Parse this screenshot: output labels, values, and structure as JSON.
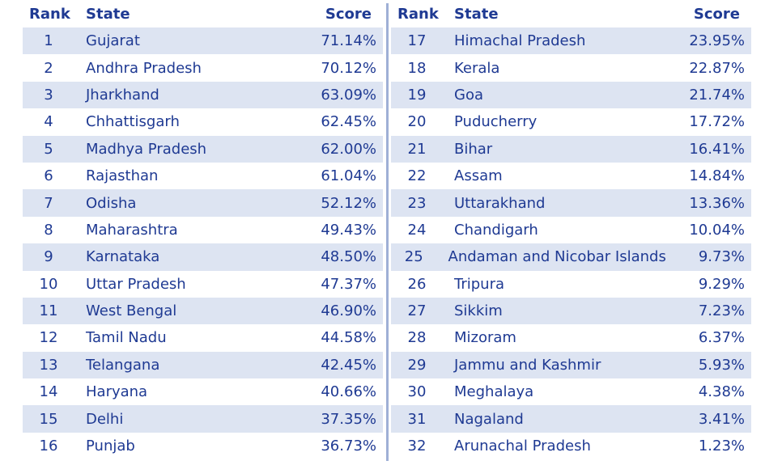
{
  "headers": {
    "rank": "Rank",
    "state": "State",
    "score": "Score"
  },
  "chart_data": {
    "type": "table",
    "columns": [
      "Rank",
      "State",
      "Score"
    ],
    "rows": [
      {
        "rank": "1",
        "state": "Gujarat",
        "score": "71.14%"
      },
      {
        "rank": "2",
        "state": "Andhra Pradesh",
        "score": "70.12%"
      },
      {
        "rank": "3",
        "state": "Jharkhand",
        "score": "63.09%"
      },
      {
        "rank": "4",
        "state": "Chhattisgarh",
        "score": "62.45%"
      },
      {
        "rank": "5",
        "state": "Madhya Pradesh",
        "score": "62.00%"
      },
      {
        "rank": "6",
        "state": "Rajasthan",
        "score": "61.04%"
      },
      {
        "rank": "7",
        "state": "Odisha",
        "score": "52.12%"
      },
      {
        "rank": "8",
        "state": "Maharashtra",
        "score": "49.43%"
      },
      {
        "rank": "9",
        "state": "Karnataka",
        "score": "48.50%"
      },
      {
        "rank": "10",
        "state": "Uttar Pradesh",
        "score": "47.37%"
      },
      {
        "rank": "11",
        "state": "West Bengal",
        "score": "46.90%"
      },
      {
        "rank": "12",
        "state": "Tamil Nadu",
        "score": "44.58%"
      },
      {
        "rank": "13",
        "state": "Telangana",
        "score": "42.45%"
      },
      {
        "rank": "14",
        "state": "Haryana",
        "score": "40.66%"
      },
      {
        "rank": "15",
        "state": "Delhi",
        "score": "37.35%"
      },
      {
        "rank": "16",
        "state": "Punjab",
        "score": "36.73%"
      },
      {
        "rank": "17",
        "state": "Himachal Pradesh",
        "score": "23.95%"
      },
      {
        "rank": "18",
        "state": "Kerala",
        "score": "22.87%"
      },
      {
        "rank": "19",
        "state": "Goa",
        "score": "21.74%"
      },
      {
        "rank": "20",
        "state": "Puducherry",
        "score": "17.72%"
      },
      {
        "rank": "21",
        "state": "Bihar",
        "score": "16.41%"
      },
      {
        "rank": "22",
        "state": "Assam",
        "score": "14.84%"
      },
      {
        "rank": "23",
        "state": "Uttarakhand",
        "score": "13.36%"
      },
      {
        "rank": "24",
        "state": "Chandigarh",
        "score": "10.04%"
      },
      {
        "rank": "25",
        "state": "Andaman and Nicobar Islands",
        "score": "9.73%"
      },
      {
        "rank": "26",
        "state": "Tripura",
        "score": "9.29%"
      },
      {
        "rank": "27",
        "state": "Sikkim",
        "score": "7.23%"
      },
      {
        "rank": "28",
        "state": "Mizoram",
        "score": "6.37%"
      },
      {
        "rank": "29",
        "state": "Jammu and Kashmir",
        "score": "5.93%"
      },
      {
        "rank": "30",
        "state": "Meghalaya",
        "score": "4.38%"
      },
      {
        "rank": "31",
        "state": "Nagaland",
        "score": "3.41%"
      },
      {
        "rank": "32",
        "state": "Arunachal Pradesh",
        "score": "1.23%"
      }
    ]
  },
  "colors": {
    "text": "#1f3a93",
    "row_shade": "#dde4f2",
    "divider": "#9fb0d6"
  }
}
